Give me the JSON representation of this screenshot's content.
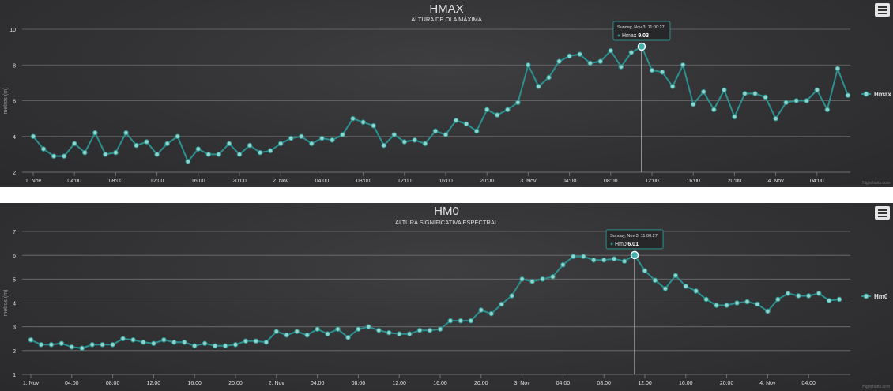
{
  "charts": [
    {
      "id": "hmax",
      "title": "HMAX",
      "subtitle": "ALTURA DE OLA MÁXIMA",
      "ylabel": "metros (m)",
      "legend": "Hmax",
      "tooltip_date": "Sunday, Nov 3, 11:00:27",
      "tooltip_series": "Hmax",
      "tooltip_value": "9.03",
      "credits": "Highcharts.com"
    },
    {
      "id": "hm0",
      "title": "HM0",
      "subtitle": "ALTURA SIGNIFICATIVA ESPECTRAL",
      "ylabel": "metros (m)",
      "legend": "Hm0",
      "tooltip_date": "Sunday, Nov 3, 11:00:27",
      "tooltip_series": "Hm0",
      "tooltip_value": "6.01",
      "credits": "Highcharts.com"
    }
  ],
  "chart_data": [
    {
      "type": "line",
      "title": "HMAX",
      "subtitle": "ALTURA DE OLA MÁXIMA",
      "ylabel": "metros (m)",
      "xlabel": "",
      "ylim": [
        2,
        10
      ],
      "yticks": [
        2,
        4,
        6,
        8,
        10
      ],
      "xticks": [
        "1. Nov",
        "04:00",
        "08:00",
        "12:00",
        "16:00",
        "20:00",
        "2. Nov",
        "04:00",
        "08:00",
        "12:00",
        "16:00",
        "20:00",
        "3. Nov",
        "04:00",
        "08:00",
        "12:00",
        "16:00",
        "20:00",
        "4. Nov",
        "04:00"
      ],
      "x_start": "Nov 1, 00:00",
      "x_interval_hours": 1,
      "grid": true,
      "legend_position": "right",
      "line_color": "#2b908f",
      "marker_color": "#90d5cc",
      "highlight_index": 59,
      "series": [
        {
          "name": "Hmax",
          "values": [
            4.0,
            3.3,
            2.9,
            2.9,
            3.6,
            3.1,
            4.2,
            3.0,
            3.1,
            4.2,
            3.5,
            3.7,
            3.0,
            3.6,
            4.0,
            2.6,
            3.3,
            3.0,
            3.0,
            3.6,
            3.0,
            3.5,
            3.1,
            3.2,
            3.6,
            3.9,
            4.0,
            3.6,
            3.9,
            3.8,
            4.1,
            5.0,
            4.8,
            4.6,
            3.5,
            4.1,
            3.7,
            3.8,
            3.6,
            4.3,
            4.1,
            4.9,
            4.7,
            4.3,
            5.5,
            5.2,
            5.5,
            5.9,
            8.0,
            6.8,
            7.3,
            8.2,
            8.5,
            8.6,
            8.1,
            8.2,
            8.8,
            7.9,
            8.7,
            9.03,
            7.7,
            7.6,
            6.8,
            8.0,
            5.8,
            6.5,
            5.5,
            6.6,
            5.1,
            6.4,
            6.4,
            6.2,
            5.0,
            5.9,
            6.0,
            6.0,
            6.6,
            5.5,
            7.8,
            6.3
          ]
        }
      ]
    },
    {
      "type": "line",
      "title": "HM0",
      "subtitle": "ALTURA SIGNIFICATIVA ESPECTRAL",
      "ylabel": "metros (m)",
      "xlabel": "",
      "ylim": [
        1,
        7
      ],
      "yticks": [
        1,
        2,
        3,
        4,
        5,
        6,
        7
      ],
      "xticks": [
        "1. Nov",
        "04:00",
        "08:00",
        "12:00",
        "16:00",
        "20:00",
        "2. Nov",
        "04:00",
        "08:00",
        "12:00",
        "16:00",
        "20:00",
        "3. Nov",
        "04:00",
        "08:00",
        "12:00",
        "16:00",
        "20:00",
        "4. Nov",
        "04:00"
      ],
      "x_start": "Nov 1, 00:00",
      "x_interval_hours": 1,
      "grid": true,
      "legend_position": "right",
      "line_color": "#2b908f",
      "marker_color": "#90d5cc",
      "highlight_index": 59,
      "series": [
        {
          "name": "Hm0",
          "values": [
            2.45,
            2.25,
            2.25,
            2.3,
            2.15,
            2.1,
            2.25,
            2.25,
            2.25,
            2.5,
            2.45,
            2.35,
            2.3,
            2.45,
            2.35,
            2.35,
            2.2,
            2.3,
            2.2,
            2.2,
            2.25,
            2.4,
            2.4,
            2.35,
            2.8,
            2.65,
            2.8,
            2.65,
            2.9,
            2.7,
            2.9,
            2.55,
            2.9,
            3.0,
            2.85,
            2.75,
            2.7,
            2.7,
            2.85,
            2.85,
            2.9,
            3.25,
            3.25,
            3.25,
            3.7,
            3.55,
            3.95,
            4.3,
            5.0,
            4.9,
            5.0,
            5.1,
            5.6,
            5.95,
            5.95,
            5.8,
            5.8,
            5.85,
            5.75,
            6.01,
            5.35,
            4.95,
            4.6,
            5.15,
            4.7,
            4.5,
            4.15,
            3.9,
            3.9,
            4.0,
            4.05,
            3.95,
            3.65,
            4.15,
            4.4,
            4.3,
            4.3,
            4.4,
            4.1,
            4.15
          ]
        }
      ]
    }
  ]
}
